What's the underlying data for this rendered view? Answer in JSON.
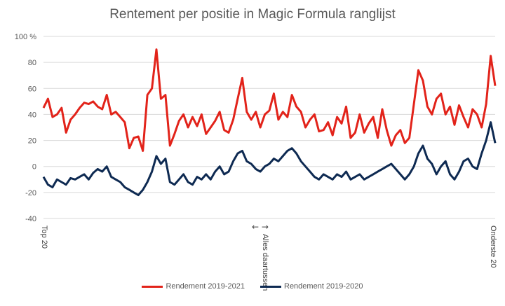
{
  "chart_data": {
    "type": "line",
    "title": "Rentement per positie in Magic Formula ranglijst",
    "ylim": [
      -40,
      100
    ],
    "yticks": [
      -40,
      -20,
      0,
      20,
      40,
      60,
      80,
      100
    ],
    "ytick_labels": [
      "-40",
      "-20",
      "0",
      "20",
      "40",
      "60",
      "80",
      "100 %"
    ],
    "xlim": [
      0,
      100
    ],
    "x_annotations": {
      "left": "Top 20",
      "middle": "Alles daartussen",
      "right": "Onderste 20",
      "middle_arrows": "←   →"
    },
    "grid": true,
    "legend_position": "bottom",
    "series": [
      {
        "name": "Rendement 2019-2021",
        "color": "#e2231a",
        "x": [
          0,
          1,
          2,
          3,
          4,
          5,
          6,
          7,
          8,
          9,
          10,
          11,
          12,
          13,
          14,
          15,
          16,
          17,
          18,
          19,
          20,
          21,
          22,
          23,
          24,
          25,
          26,
          27,
          28,
          29,
          30,
          31,
          32,
          33,
          34,
          35,
          36,
          37,
          38,
          39,
          40,
          41,
          42,
          43,
          44,
          45,
          46,
          47,
          48,
          49,
          50,
          51,
          52,
          53,
          54,
          55,
          56,
          57,
          58,
          59,
          60,
          61,
          62,
          63,
          64,
          65,
          66,
          67,
          68,
          69,
          70,
          71,
          72,
          73,
          74,
          75,
          76,
          77,
          78,
          79,
          80,
          81,
          82,
          83,
          84,
          85,
          86,
          87,
          88,
          89,
          90,
          91,
          92,
          93,
          94,
          95,
          96,
          97,
          98,
          99,
          100
        ],
        "y": [
          45,
          52,
          38,
          40,
          45,
          26,
          36,
          40,
          45,
          49,
          48,
          50,
          46,
          44,
          55,
          40,
          42,
          38,
          34,
          14,
          22,
          23,
          12,
          55,
          60,
          90,
          52,
          55,
          16,
          25,
          35,
          40,
          30,
          38,
          31,
          40,
          25,
          30,
          35,
          42,
          28,
          26,
          36,
          52,
          68,
          42,
          36,
          42,
          30,
          40,
          43,
          56,
          36,
          42,
          38,
          55,
          46,
          42,
          30,
          36,
          40,
          27,
          28,
          34,
          24,
          38,
          33,
          46,
          22,
          26,
          40,
          26,
          33,
          38,
          22,
          44,
          28,
          16,
          24,
          28,
          18,
          22,
          48,
          74,
          66,
          46,
          40,
          52,
          56,
          40,
          46,
          32,
          47,
          38,
          30,
          44,
          40,
          30,
          48,
          85,
          62
        ]
      },
      {
        "name": "Rendement 2019-2020",
        "color": "#0e2a52",
        "x": [
          0,
          1,
          2,
          3,
          4,
          5,
          6,
          7,
          8,
          9,
          10,
          11,
          12,
          13,
          14,
          15,
          16,
          17,
          18,
          19,
          20,
          21,
          22,
          23,
          24,
          25,
          26,
          27,
          28,
          29,
          30,
          31,
          32,
          33,
          34,
          35,
          36,
          37,
          38,
          39,
          40,
          41,
          42,
          43,
          44,
          45,
          46,
          47,
          48,
          49,
          50,
          51,
          52,
          53,
          54,
          55,
          56,
          57,
          58,
          59,
          60,
          61,
          62,
          63,
          64,
          65,
          66,
          67,
          68,
          69,
          70,
          71,
          72,
          73,
          74,
          75,
          76,
          77,
          78,
          79,
          80,
          81,
          82,
          83,
          84,
          85,
          86,
          87,
          88,
          89,
          90,
          91,
          92,
          93,
          94,
          95,
          96,
          97,
          98,
          99,
          100
        ],
        "y": [
          -8,
          -14,
          -16,
          -10,
          -12,
          -14,
          -9,
          -10,
          -8,
          -6,
          -10,
          -5,
          -2,
          -4,
          0,
          -8,
          -10,
          -12,
          -16,
          -18,
          -20,
          -22,
          -18,
          -12,
          -4,
          8,
          2,
          6,
          -12,
          -14,
          -10,
          -6,
          -12,
          -14,
          -8,
          -10,
          -6,
          -10,
          -4,
          0,
          -6,
          -4,
          4,
          10,
          12,
          4,
          2,
          -2,
          -4,
          0,
          2,
          6,
          4,
          8,
          12,
          14,
          10,
          4,
          0,
          -4,
          -8,
          -10,
          -6,
          -8,
          -10,
          -6,
          -8,
          -4,
          -10,
          -8,
          -6,
          -10,
          -8,
          -6,
          -4,
          -2,
          0,
          2,
          -2,
          -6,
          -10,
          -6,
          0,
          10,
          16,
          6,
          2,
          -6,
          0,
          4,
          -6,
          -10,
          -4,
          4,
          6,
          0,
          -2,
          10,
          20,
          34,
          18
        ]
      }
    ]
  }
}
